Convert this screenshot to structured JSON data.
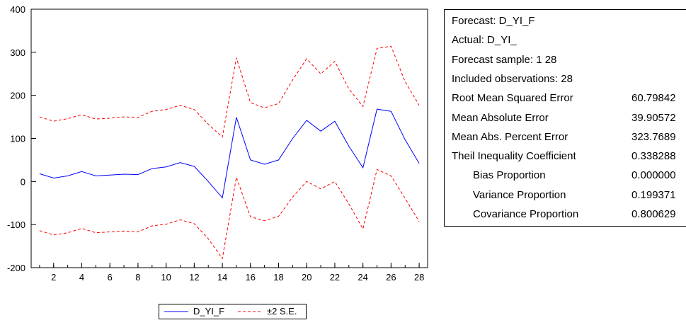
{
  "chart_data": {
    "type": "line",
    "x": [
      1,
      2,
      3,
      4,
      5,
      6,
      7,
      8,
      9,
      10,
      11,
      12,
      13,
      14,
      15,
      16,
      17,
      18,
      19,
      20,
      21,
      22,
      23,
      24,
      25,
      26,
      27,
      28
    ],
    "xticks": [
      2,
      4,
      6,
      8,
      10,
      12,
      14,
      16,
      18,
      20,
      22,
      24,
      26,
      28
    ],
    "yticks": [
      -200,
      -100,
      0,
      100,
      200,
      300,
      400
    ],
    "xlim": [
      0.4,
      28.6
    ],
    "ylim": [
      -200,
      400
    ],
    "grid": false,
    "legend": "bottom",
    "series": [
      {
        "name": "D_YI_F",
        "color": "#0000ff",
        "style": "solid",
        "values": [
          18,
          8,
          13,
          23,
          13,
          15,
          17,
          16,
          30,
          34,
          44,
          35,
          0,
          -38,
          149,
          50,
          40,
          50,
          100,
          142,
          117,
          140,
          82,
          32,
          168,
          163,
          97,
          42
        ]
      },
      {
        "name": "±2 S.E.",
        "color": "#ff0000",
        "style": "dashed",
        "values": [
          150,
          140,
          146,
          155,
          145,
          147,
          150,
          149,
          163,
          167,
          177,
          167,
          133,
          103,
          287,
          183,
          171,
          181,
          236,
          285,
          250,
          279,
          215,
          174,
          309,
          314,
          232,
          177
        ]
      },
      {
        "name": "",
        "color": "#ff0000",
        "style": "dashed",
        "values": [
          -114,
          -124,
          -119,
          -109,
          -119,
          -117,
          -115,
          -117,
          -103,
          -99,
          -89,
          -98,
          -133,
          -179,
          10,
          -82,
          -91,
          -81,
          -36,
          0,
          -17,
          0,
          -52,
          -110,
          28,
          13,
          -39,
          -93
        ]
      }
    ]
  },
  "stats": {
    "rows": [
      {
        "label": "Forecast: D_YI_F",
        "value": "",
        "indent": false
      },
      {
        "label": "Actual: D_YI_",
        "value": "",
        "indent": false
      },
      {
        "label": "Forecast sample: 1 28",
        "value": "",
        "indent": false
      },
      {
        "label": "Included observations: 28",
        "value": "",
        "indent": false
      },
      {
        "label": "Root Mean Squared Error",
        "value": "60.79842",
        "indent": false
      },
      {
        "label": "Mean Absolute Error",
        "value": "39.90572",
        "indent": false
      },
      {
        "label": "Mean Abs. Percent Error",
        "value": "323.7689",
        "indent": false
      },
      {
        "label": "Theil Inequality Coefficient",
        "value": "0.338288",
        "indent": false
      },
      {
        "label": "Bias Proportion",
        "value": "0.000000",
        "indent": true
      },
      {
        "label": "Variance Proportion",
        "value": "0.199371",
        "indent": true
      },
      {
        "label": "Covariance Proportion",
        "value": "0.800629",
        "indent": true
      }
    ]
  },
  "legend": {
    "items": [
      {
        "label": "D_YI_F",
        "color": "#0000ff",
        "style": "solid"
      },
      {
        "label": "±2 S.E.",
        "color": "#ff0000",
        "style": "dashed"
      }
    ]
  }
}
